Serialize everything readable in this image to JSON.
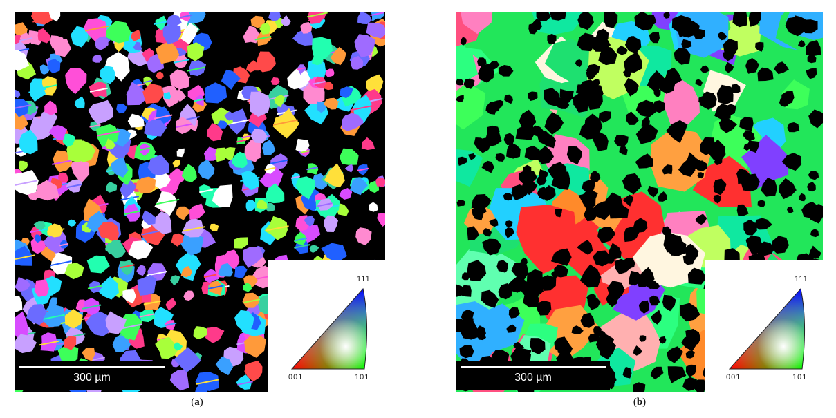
{
  "panels": [
    {
      "id": "a",
      "caption_open": "(",
      "caption_letter": "a",
      "caption_close": ")",
      "scale_bar_label": "300 µm",
      "legend": {
        "top": "111",
        "bottom_left": "001",
        "bottom_right": "101"
      },
      "background_color": "#000000",
      "grain_style": "small dispersed grains on black matrix"
    },
    {
      "id": "b",
      "caption_open": "(",
      "caption_letter": "b",
      "caption_close": ")",
      "scale_bar_label": "300 µm",
      "legend": {
        "top": "111",
        "bottom_left": "001",
        "bottom_right": "101"
      },
      "background_color": "#00e676",
      "grain_style": "large grains with black holes"
    }
  ],
  "colors": {
    "green": "#22e65a",
    "red": "#ff2020",
    "blue": "#3a3aff",
    "magenta": "#ff40ff",
    "cyan": "#20e0ff"
  }
}
